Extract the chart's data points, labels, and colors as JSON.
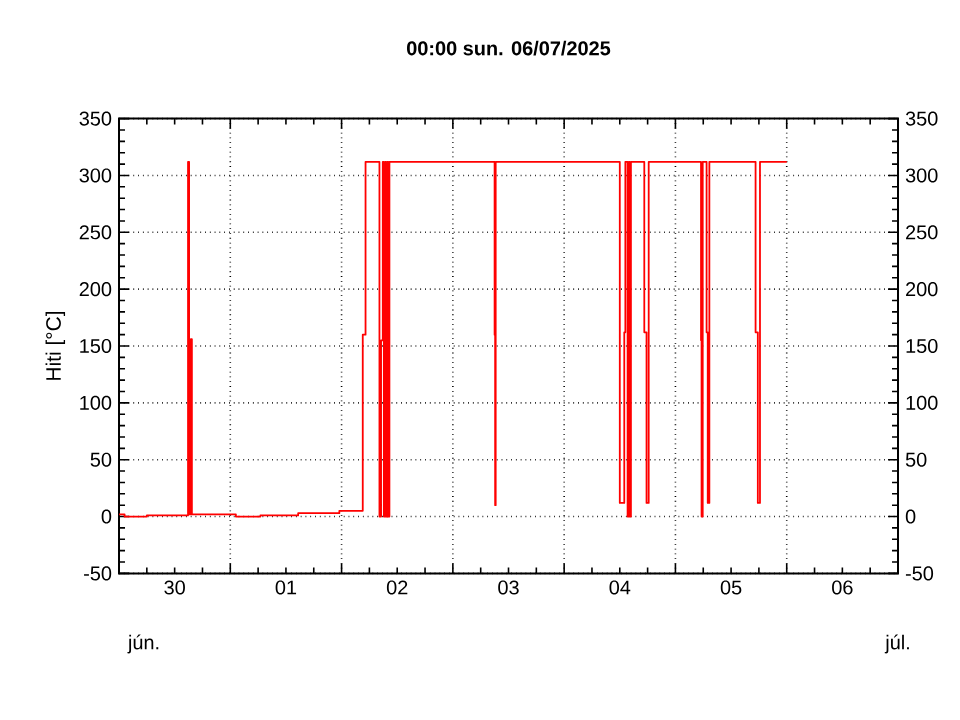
{
  "chart_data": {
    "type": "line",
    "title": "00:00   sun.  06/07/2025",
    "ylabel": "Hiti [°C]",
    "annotations": [
      "jún.",
      "júl."
    ],
    "xlim": [
      "2025-06-30",
      "2025-07-07"
    ],
    "xticks": [
      {
        "value": "2025-06-30",
        "label": null
      },
      {
        "value": "2025-06-30T12:00",
        "label": "30"
      },
      {
        "value": "2025-07-01",
        "label": null
      },
      {
        "value": "2025-07-01T12:00",
        "label": "01"
      },
      {
        "value": "2025-07-02",
        "label": null
      },
      {
        "value": "2025-07-02T12:00",
        "label": "02"
      },
      {
        "value": "2025-07-03",
        "label": null
      },
      {
        "value": "2025-07-03T12:00",
        "label": "03"
      },
      {
        "value": "2025-07-04",
        "label": null
      },
      {
        "value": "2025-07-04T12:00",
        "label": "04"
      },
      {
        "value": "2025-07-05",
        "label": null
      },
      {
        "value": "2025-07-05T12:00",
        "label": "05"
      },
      {
        "value": "2025-07-06",
        "label": null
      },
      {
        "value": "2025-07-06T12:00",
        "label": "06"
      },
      {
        "value": "2025-07-07",
        "label": null
      }
    ],
    "ylim": [
      -50,
      350
    ],
    "yticks": [
      -50,
      0,
      50,
      100,
      150,
      200,
      250,
      300,
      350
    ],
    "y2lim": [
      -50,
      350
    ],
    "y2ticks": [
      -50,
      0,
      50,
      100,
      150,
      200,
      250,
      300,
      350
    ],
    "grid": true,
    "marker": "none",
    "line_style": "solid",
    "series": [
      {
        "color": "#ff0000",
        "x": [
          "2025-06-30T00:00",
          "2025-06-30T01:12",
          "2025-06-30T01:12",
          "2025-06-30T06:00",
          "2025-06-30T06:00",
          "2025-06-30T14:53",
          "2025-06-30T14:53",
          "2025-06-30T15:07",
          "2025-06-30T15:07",
          "2025-06-30T15:29",
          "2025-06-30T15:29",
          "2025-06-30T15:43",
          "2025-06-30T15:43",
          "2025-07-01T01:12",
          "2025-07-01T01:12",
          "2025-07-01T06:29",
          "2025-07-01T06:29",
          "2025-07-01T14:38",
          "2025-07-01T14:38",
          "2025-07-01T23:31",
          "2025-07-01T23:31",
          "2025-07-02T04:34",
          "2025-07-02T04:34",
          "2025-07-02T05:10",
          "2025-07-02T05:10",
          "2025-07-02T08:10",
          "2025-07-02T08:10",
          "2025-07-02T08:31",
          "2025-07-02T08:31",
          "2025-07-02T08:53",
          "2025-07-02T08:53",
          "2025-07-02T09:07",
          "2025-07-02T09:07",
          "2025-07-02T09:22",
          "2025-07-02T09:22",
          "2025-07-02T09:36",
          "2025-07-02T09:36",
          "2025-07-02T09:50",
          "2025-07-02T09:50",
          "2025-07-02T10:05",
          "2025-07-02T10:05",
          "2025-07-02T10:19",
          "2025-07-02T10:19",
          "2025-07-03T09:00",
          "2025-07-03T09:00",
          "2025-07-03T09:07",
          "2025-07-03T09:07",
          "2025-07-03T09:14",
          "2025-07-03T09:14",
          "2025-07-04T12:00",
          "2025-07-04T12:00",
          "2025-07-04T12:58",
          "2025-07-04T12:58",
          "2025-07-04T13:12",
          "2025-07-04T13:12",
          "2025-07-04T13:41",
          "2025-07-04T13:41",
          "2025-07-04T13:55",
          "2025-07-04T13:55",
          "2025-07-04T14:10",
          "2025-07-04T14:10",
          "2025-07-04T14:24",
          "2025-07-04T14:24",
          "2025-07-04T17:17",
          "2025-07-04T17:17",
          "2025-07-04T17:46",
          "2025-07-04T17:46",
          "2025-07-04T18:14",
          "2025-07-04T18:14",
          "2025-07-05T05:31",
          "2025-07-05T05:31",
          "2025-07-05T05:38",
          "2025-07-05T05:38",
          "2025-07-05T05:53",
          "2025-07-05T05:53",
          "2025-07-05T06:43",
          "2025-07-05T06:43",
          "2025-07-05T06:58",
          "2025-07-05T06:58",
          "2025-07-05T07:19",
          "2025-07-05T07:19",
          "2025-07-05T17:17",
          "2025-07-05T17:17",
          "2025-07-05T17:46",
          "2025-07-05T17:46",
          "2025-07-05T18:14",
          "2025-07-05T18:14",
          "2025-07-06T00:00"
        ],
        "values": [
          2,
          2,
          0,
          0,
          1,
          1,
          312,
          312,
          2,
          2,
          156,
          156,
          2,
          2,
          0,
          0,
          1,
          1,
          3,
          3,
          5,
          5,
          160,
          160,
          312,
          312,
          0,
          0,
          155,
          155,
          312,
          312,
          0,
          0,
          312,
          312,
          0,
          0,
          312,
          312,
          0,
          0,
          312,
          312,
          160,
          160,
          10,
          10,
          312,
          312,
          12,
          12,
          162,
          162,
          312,
          312,
          0,
          0,
          312,
          312,
          0,
          0,
          312,
          312,
          162,
          162,
          12,
          12,
          312,
          312,
          155,
          155,
          0,
          0,
          312,
          312,
          162,
          162,
          12,
          12,
          312,
          312,
          162,
          162,
          12,
          12,
          312,
          312
        ]
      }
    ]
  }
}
